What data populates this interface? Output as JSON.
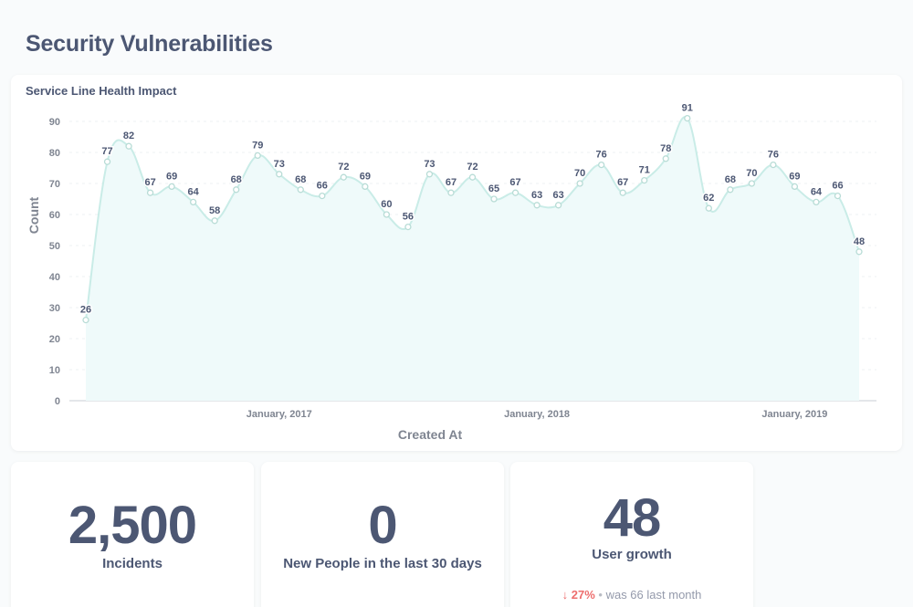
{
  "dashboard": {
    "title": "Security Vulnerabilities"
  },
  "chart_card": {
    "title": "Service Line Health Impact"
  },
  "chart_data": {
    "type": "area",
    "title": "Service Line Health Impact",
    "xlabel": "Created At",
    "ylabel": "Count",
    "ylim": [
      0,
      90
    ],
    "yticks": [
      0,
      10,
      20,
      30,
      40,
      50,
      60,
      70,
      80,
      90
    ],
    "x_tick_labels": [
      "January, 2017",
      "January, 2018",
      "January, 2019"
    ],
    "x": [
      "2016-04",
      "2016-05",
      "2016-06",
      "2016-07",
      "2016-08",
      "2016-09",
      "2016-10",
      "2016-11",
      "2016-12",
      "2017-01",
      "2017-02",
      "2017-03",
      "2017-04",
      "2017-05",
      "2017-06",
      "2017-07",
      "2017-08",
      "2017-09",
      "2017-10",
      "2017-11",
      "2017-12",
      "2018-01",
      "2018-02",
      "2018-03",
      "2018-04",
      "2018-05",
      "2018-06",
      "2018-07",
      "2018-08",
      "2018-09",
      "2018-10",
      "2018-11",
      "2018-12",
      "2019-01",
      "2019-02",
      "2019-03",
      "2019-04"
    ],
    "values": [
      26,
      77,
      82,
      67,
      69,
      64,
      58,
      68,
      79,
      73,
      68,
      66,
      72,
      69,
      60,
      56,
      73,
      67,
      72,
      65,
      67,
      63,
      63,
      70,
      76,
      67,
      71,
      78,
      91,
      62,
      68,
      70,
      76,
      69,
      64,
      66,
      48
    ],
    "grid": true,
    "legend": "none",
    "colors": {
      "line": "#c9ece7",
      "fill": "#effafa",
      "marker_stroke": "#b8dcd6",
      "label": "#4c5773"
    }
  },
  "scalars": [
    {
      "value": "2,500",
      "label": "Incidents"
    },
    {
      "value": "0",
      "label": "New People in the last 30 days"
    },
    {
      "value": "48",
      "label": "User growth",
      "change": {
        "arrow": "↓",
        "percent": "27%",
        "separator": "•",
        "was": "was 66",
        "period": "last month"
      }
    }
  ]
}
